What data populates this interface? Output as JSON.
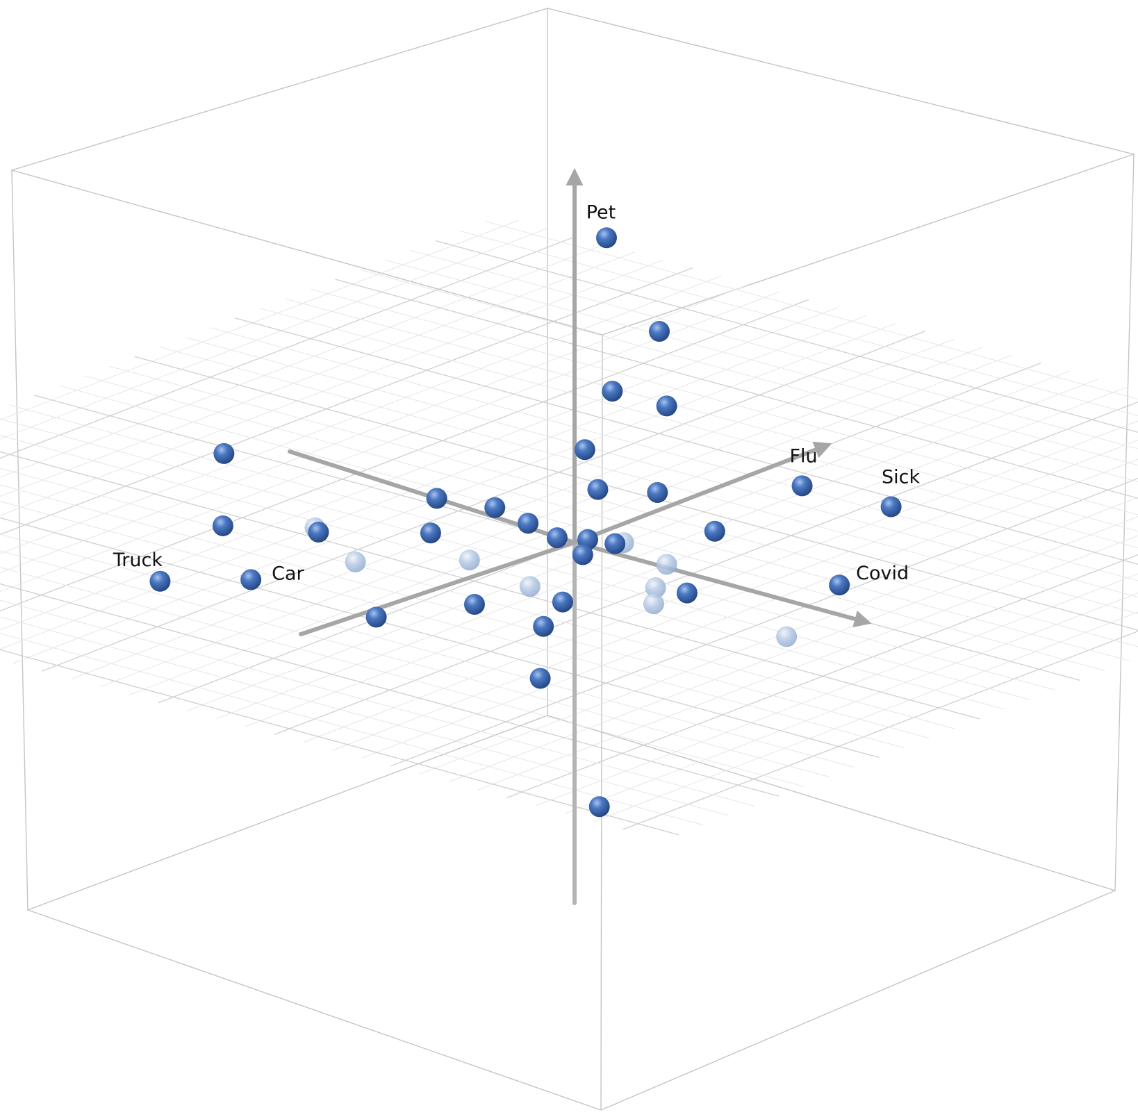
{
  "colors": {
    "marker": "#2f5da8",
    "marker_faded": "#a8bedc",
    "axis": "#a6a6a6",
    "box": "#bdbdbd",
    "grid": "#dcdcdc"
  },
  "chart_data": {
    "type": "scatter3d",
    "title": "",
    "xlabel": "",
    "ylabel": "",
    "zlabel": "",
    "grid": true,
    "labeled_points": [
      {
        "label": "Pet",
        "value": [
          -0.4,
          -1.1,
          4.2
        ]
      },
      {
        "label": "Flu",
        "value": [
          3.4,
          -0.6,
          1.5
        ]
      },
      {
        "label": "Sick",
        "value": [
          4.5,
          -1.1,
          1.3
        ]
      },
      {
        "label": "Covid",
        "value": [
          4.3,
          -0.3,
          0.3
        ]
      },
      {
        "label": "Truck",
        "value": [
          -4.2,
          3.4,
          -0.6
        ]
      },
      {
        "label": "Car",
        "value": [
          -3.5,
          2.4,
          -0.7
        ]
      }
    ],
    "points": [
      [
        1.2,
        -0.3,
        3.4
      ],
      [
        1.5,
        -0.1,
        2.4
      ],
      [
        -0.3,
        -1.1,
        1.9
      ],
      [
        1.6,
        0.2,
        1.2
      ],
      [
        -0.6,
        -0.9,
        1.0
      ],
      [
        0.4,
        0.0,
        0.9
      ],
      [
        2.5,
        0.1,
        0.8
      ],
      [
        1.3,
        0.7,
        0.5
      ],
      [
        -5.0,
        1.2,
        0.5
      ],
      [
        -2.2,
        0.2,
        0.2
      ],
      [
        -1.2,
        0.2,
        0.3
      ],
      [
        -0.8,
        0.0,
        0.1
      ],
      [
        0.4,
        0.2,
        0.2
      ],
      [
        -0.3,
        0.0,
        0.0
      ],
      [
        0.4,
        0.3,
        0.0
      ],
      [
        -1.7,
        0.9,
        0.0
      ],
      [
        -3.2,
        1.4,
        -0.2
      ],
      [
        -4.5,
        1.8,
        -0.3
      ],
      [
        2.8,
        1.0,
        0.2
      ],
      [
        -0.6,
        1.3,
        -0.7
      ],
      [
        0.5,
        1.2,
        -0.8
      ],
      [
        0.4,
        0.7,
        -0.6
      ],
      [
        -1.6,
        2.1,
        -0.9
      ],
      [
        2.0,
        3.0,
        -0.7
      ],
      [
        2.5,
        2.4,
        -2.7
      ]
    ],
    "points_faded": [
      [
        -3.0,
        1.7,
        0.0
      ],
      [
        0.5,
        -0.4,
        0.0
      ],
      [
        1.5,
        -0.1,
        0.0
      ],
      [
        2.0,
        0.7,
        0.0
      ],
      [
        2.4,
        1.2,
        0.0
      ],
      [
        -1.7,
        2.4,
        0.0
      ],
      [
        -0.6,
        1.4,
        0.0
      ],
      [
        0.7,
        1.7,
        0.0
      ],
      [
        4.6,
        1.1,
        0.0
      ]
    ]
  }
}
